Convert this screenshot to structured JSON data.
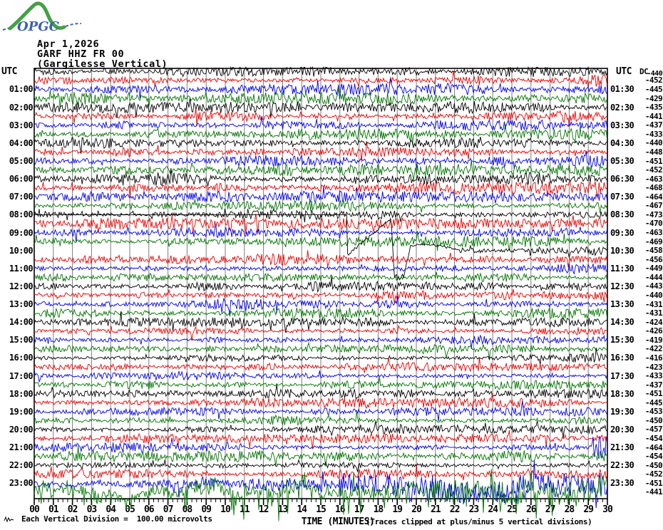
{
  "logo": {
    "text": "OPGC",
    "green": "#44a044",
    "blue": "#3c5fb0"
  },
  "header": {
    "date": "Apr 1,2026",
    "channel": "GARF HHZ FR 00",
    "station_name": "(Gargilesse Vertical)"
  },
  "left_axis": {
    "title": "UTC",
    "labels": [
      "01:00",
      "02:00",
      "03:00",
      "04:00",
      "05:00",
      "06:00",
      "07:00",
      "08:00",
      "09:00",
      "10:00",
      "11:00",
      "12:00",
      "13:00",
      "14:00",
      "15:00",
      "16:00",
      "17:00",
      "18:00",
      "19:00",
      "20:00",
      "21:00",
      "22:00",
      "23:00"
    ]
  },
  "right_axis": {
    "title": "UTC",
    "labels": [
      "01:30",
      "02:30",
      "03:30",
      "04:30",
      "05:30",
      "06:30",
      "07:30",
      "08:30",
      "09:30",
      "10:30",
      "11:30",
      "12:30",
      "13:30",
      "14:30",
      "15:30",
      "16:30",
      "17:30",
      "18:30",
      "19:30",
      "20:30",
      "21:30",
      "22:30",
      "23:30"
    ]
  },
  "dc_column": {
    "header": "DC",
    "values": [
      -440,
      -452,
      -445,
      -429,
      -435,
      -441,
      -437,
      -433,
      -440,
      -448,
      -451,
      -452,
      -463,
      -468,
      -464,
      -467,
      -473,
      -470,
      -463,
      -469,
      -458,
      -456,
      -449,
      -444,
      -443,
      -440,
      -431,
      -431,
      -424,
      -426,
      -419,
      -422,
      -416,
      -423,
      -433,
      -437,
      -451,
      -445,
      -453,
      -450,
      -457,
      -454,
      -464,
      -454,
      -450,
      -452,
      -451,
      -441
    ]
  },
  "x_axis": {
    "title": "TIME (MINUTES)",
    "tick_labels": [
      "00",
      "01",
      "02",
      "03",
      "04",
      "05",
      "06",
      "07",
      "08",
      "09",
      "10",
      "11",
      "12",
      "13",
      "14",
      "15",
      "16",
      "17",
      "18",
      "19",
      "20",
      "21",
      "22",
      "23",
      "24",
      "25",
      "26",
      "27",
      "28",
      "29",
      "30"
    ],
    "minutes_range": [
      0,
      30
    ]
  },
  "captions": {
    "left": "Each Vertical Division =  100.00 microvolts",
    "right": "(Traces clipped at plus/minus 5 vertical divisions)"
  },
  "colors": {
    "background": "#ffffff",
    "grid": "#7d7d7d",
    "border": "#000000",
    "trace_map": {
      "black": "#000000",
      "red": "#ee0000",
      "blue": "#0000ee",
      "green": "#007500"
    }
  },
  "chart_data": {
    "type": "line",
    "subtype": "helicorder-seismogram",
    "title": "GARF HHZ FR 00 (Gargilesse Vertical) — Apr 1,2026",
    "xlabel": "TIME (MINUTES)",
    "x_range_minutes": [
      0,
      30
    ],
    "minutes_per_line": 30,
    "grid": "vertical gridline every 1 minute, small ticks every 15 seconds",
    "vertical_division_microvolts": 100.0,
    "clip_divisions": 5,
    "y_units": "microvolts (DC offset per line shown in right column)",
    "rows": [
      {
        "start": "00:00",
        "color": "black",
        "dc": -440,
        "amp": 4.2
      },
      {
        "start": "00:30",
        "color": "red",
        "dc": -452,
        "amp": 4.2
      },
      {
        "start": "01:00",
        "color": "blue",
        "dc": -445,
        "amp": 4.2
      },
      {
        "start": "01:30",
        "color": "green",
        "dc": -429,
        "amp": 4.2
      },
      {
        "start": "02:00",
        "color": "black",
        "dc": -435,
        "amp": 4.2
      },
      {
        "start": "02:30",
        "color": "red",
        "dc": -441,
        "amp": 4.2
      },
      {
        "start": "03:00",
        "color": "blue",
        "dc": -437,
        "amp": 4.2
      },
      {
        "start": "03:30",
        "color": "green",
        "dc": -433,
        "amp": 4.2
      },
      {
        "start": "04:00",
        "color": "black",
        "dc": -440,
        "amp": 4.2
      },
      {
        "start": "04:30",
        "color": "red",
        "dc": -448,
        "amp": 4.2
      },
      {
        "start": "05:00",
        "color": "blue",
        "dc": -451,
        "amp": 4.2
      },
      {
        "start": "05:30",
        "color": "green",
        "dc": -452,
        "amp": 4.2
      },
      {
        "start": "06:00",
        "color": "black",
        "dc": -463,
        "amp": 4.6
      },
      {
        "start": "06:30",
        "color": "red",
        "dc": -468,
        "amp": 4.4
      },
      {
        "start": "07:00",
        "color": "blue",
        "dc": -464,
        "amp": 3.8
      },
      {
        "start": "07:30",
        "color": "green",
        "dc": -467,
        "amp": 3.8
      },
      {
        "start": "08:00",
        "color": "black",
        "dc": -473,
        "amp": 3.8
      },
      {
        "start": "08:30",
        "color": "red",
        "dc": -470,
        "amp": 3.8
      },
      {
        "start": "09:00",
        "color": "blue",
        "dc": -463,
        "amp": 3.8
      },
      {
        "start": "09:30",
        "color": "green",
        "dc": -469,
        "amp": 3.8
      },
      {
        "start": "10:00",
        "color": "black",
        "dc": -458,
        "amp": 3.8,
        "event": "slow transient: ramp up ~4 divisions (min 16.4-18.7), sharp drop ~3.3 divisions below, overshoot hump, settles by min 22.3"
      },
      {
        "start": "10:30",
        "color": "red",
        "dc": -456,
        "amp": 3.8
      },
      {
        "start": "11:00",
        "color": "blue",
        "dc": -449,
        "amp": 3.8
      },
      {
        "start": "11:30",
        "color": "green",
        "dc": -444,
        "amp": 3.8
      },
      {
        "start": "12:00",
        "color": "black",
        "dc": -443,
        "amp": 4.4
      },
      {
        "start": "12:30",
        "color": "red",
        "dc": -440,
        "amp": 4.0
      },
      {
        "start": "13:00",
        "color": "blue",
        "dc": -431,
        "amp": 3.8
      },
      {
        "start": "13:30",
        "color": "green",
        "dc": -431,
        "amp": 3.8
      },
      {
        "start": "14:00",
        "color": "black",
        "dc": -424,
        "amp": 3.2
      },
      {
        "start": "14:30",
        "color": "red",
        "dc": -426,
        "amp": 3.4
      },
      {
        "start": "15:00",
        "color": "blue",
        "dc": -419,
        "amp": 3.2
      },
      {
        "start": "15:30",
        "color": "green",
        "dc": -422,
        "amp": 3.4
      },
      {
        "start": "16:00",
        "color": "black",
        "dc": -416,
        "amp": 3.2
      },
      {
        "start": "16:30",
        "color": "red",
        "dc": -423,
        "amp": 3.2
      },
      {
        "start": "17:00",
        "color": "blue",
        "dc": -433,
        "amp": 3.2
      },
      {
        "start": "17:30",
        "color": "green",
        "dc": -437,
        "amp": 3.4
      },
      {
        "start": "18:00",
        "color": "black",
        "dc": -451,
        "amp": 3.4
      },
      {
        "start": "18:30",
        "color": "red",
        "dc": -445,
        "amp": 3.4
      },
      {
        "start": "19:00",
        "color": "blue",
        "dc": -453,
        "amp": 3.2
      },
      {
        "start": "19:30",
        "color": "green",
        "dc": -450,
        "amp": 3.4
      },
      {
        "start": "20:00",
        "color": "black",
        "dc": -457,
        "amp": 3.2
      },
      {
        "start": "20:30",
        "color": "red",
        "dc": -454,
        "amp": 3.4
      },
      {
        "start": "21:00",
        "color": "blue",
        "dc": -464,
        "amp": 3.6,
        "end_spike": true
      },
      {
        "start": "21:30",
        "color": "green",
        "dc": -454,
        "amp": 4.0,
        "bursty": 0.9
      },
      {
        "start": "22:00",
        "color": "black",
        "dc": -450,
        "amp": 3.2
      },
      {
        "start": "22:30",
        "color": "red",
        "dc": -452,
        "amp": 3.6
      },
      {
        "start": "23:00",
        "color": "blue",
        "dc": -451,
        "amp": 4.5,
        "wander": true
      },
      {
        "start": "23:30",
        "color": "green",
        "dc": -441,
        "amp": 10,
        "wild": true
      }
    ],
    "events": [
      {
        "row_start": "10:00",
        "minutes": [
          16.4,
          22.3
        ],
        "description": "large slow transient crossing several lines (ramp, drop, overshoot hump)"
      },
      {
        "row_start": "21:00",
        "description": "large spike burst near minute 29.5"
      },
      {
        "row_start": "23:00",
        "description": "elevated low-frequency noise in second half of line"
      },
      {
        "row_start": "23:30",
        "description": "very high amplitude noise across whole line; spikes exceed line spacing and cross the time axis"
      }
    ],
    "legend_position": "none"
  }
}
